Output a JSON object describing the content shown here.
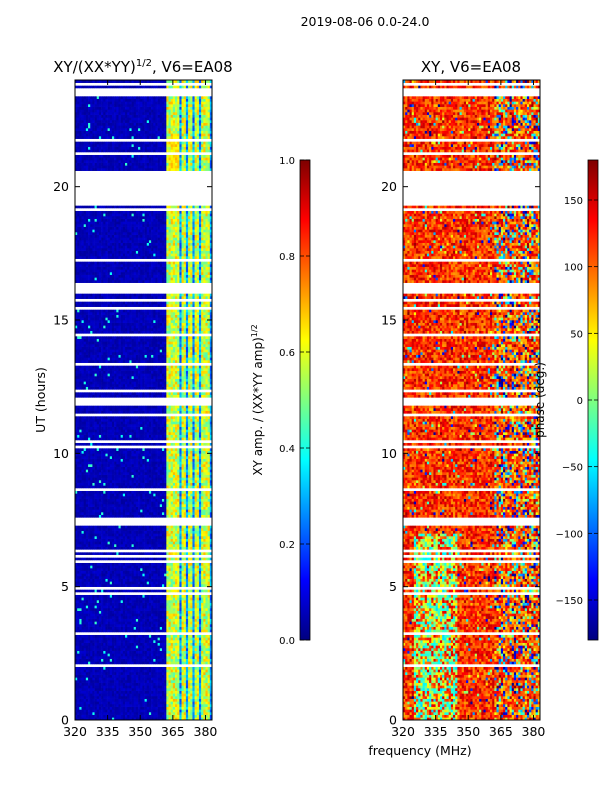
{
  "figure": {
    "suptitle": "2019-08-06 0.0-24.0",
    "common_xlabel": "frequency (MHz)"
  },
  "chart_data": [
    {
      "type": "heatmap",
      "title_main": "XY/(XX*YY)",
      "title_sup": "1/2",
      "title_tail": ", V6=EA08",
      "xlabel": "",
      "ylabel": "UT (hours)",
      "xlim": [
        320,
        383
      ],
      "ylim": [
        0,
        24
      ],
      "xticks": [
        320,
        335,
        350,
        365,
        380
      ],
      "yticks": [
        0,
        5,
        10,
        15,
        20
      ],
      "colorbar": {
        "label_main": "XY amp. / (XX*YY amp)",
        "label_sup": "1/2",
        "range": [
          0.0,
          1.0
        ],
        "ticks": [
          "0.0",
          "0.2",
          "0.4",
          "0.6",
          "0.8",
          "1.0"
        ],
        "tick_values": [
          0.0,
          0.2,
          0.4,
          0.6,
          0.8,
          1.0
        ],
        "colormap": "jet"
      },
      "description": "Mostly low amplitude (~0.05) across 320-362 MHz; elevated amplitude (0.2-0.6) in vertical stripes between 362 and 382 MHz",
      "flagged_ut_bands": [
        [
          19.5,
          20.2
        ],
        [
          20.2,
          20.5
        ],
        [
          20.5,
          20.8
        ],
        [
          20.8,
          21.1
        ],
        [
          11.8,
          12.1
        ],
        [
          23.4,
          23.7
        ],
        [
          7.3,
          7.6
        ]
      ]
    },
    {
      "type": "heatmap",
      "title": "XY, V6=EA08",
      "xlabel": "frequency (MHz)",
      "ylabel": "",
      "xlim": [
        320,
        383
      ],
      "ylim": [
        0,
        24
      ],
      "xticks": [
        320,
        335,
        350,
        365,
        380
      ],
      "yticks": [
        0,
        5,
        10,
        15,
        20
      ],
      "colorbar": {
        "label": "phase (deg.)",
        "range": [
          -180,
          180
        ],
        "ticks": [
          "−150",
          "−100",
          "−50",
          "0",
          "50",
          "100",
          "150"
        ],
        "tick_values": [
          -150,
          -100,
          -50,
          0,
          50,
          100,
          150
        ],
        "colormap": "jet"
      },
      "description": "Phase mostly 80-150 deg (red/orange) across 320-360 MHz with mixed values (yellow/cyan/blue) above 360 MHz and at low UT in the 325-345 MHz range"
    }
  ],
  "colors": {
    "jet_stops": [
      "#00007f",
      "#0000ff",
      "#007fff",
      "#00ffff",
      "#7fff7f",
      "#ffff00",
      "#ff7f00",
      "#ff0000",
      "#7f0000"
    ]
  }
}
